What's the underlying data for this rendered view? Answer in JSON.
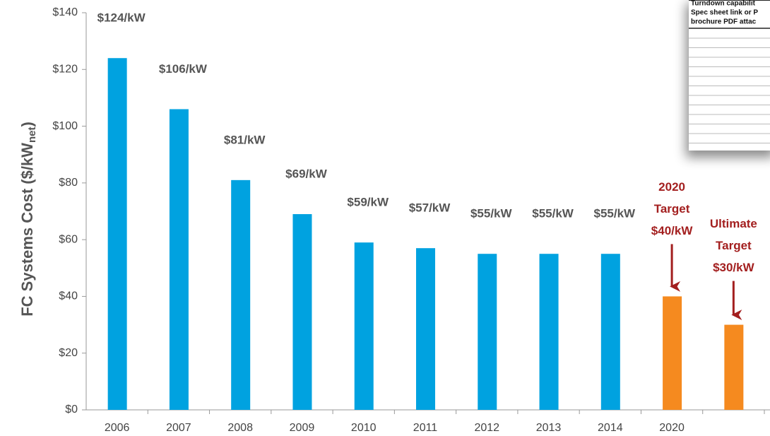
{
  "chart_data": {
    "type": "bar",
    "y_label": {
      "main": "FC Systems Cost ($/kW",
      "sub": "net",
      "end": ")"
    },
    "categories": [
      "2006",
      "2007",
      "2008",
      "2009",
      "2010",
      "2011",
      "2012",
      "2013",
      "2014",
      "2020",
      null
    ],
    "values": [
      124,
      106,
      81,
      69,
      59,
      57,
      55,
      55,
      55,
      40,
      30
    ],
    "value_labels": [
      "$124/kW",
      "$106/kW",
      "$81/kW",
      "$69/kW",
      "$59/kW",
      "$57/kW",
      "$55/kW",
      "$55/kW",
      "$55/kW",
      null,
      null
    ],
    "colors": [
      "#00a2e0",
      "#00a2e0",
      "#00a2e0",
      "#00a2e0",
      "#00a2e0",
      "#00a2e0",
      "#00a2e0",
      "#00a2e0",
      "#00a2e0",
      "#f58a1f",
      "#f58a1f"
    ],
    "annotations": [
      {
        "lines": [
          "2020",
          "Target",
          "$40/kW"
        ],
        "color": "#a31f1f"
      },
      {
        "lines": [
          "Ultimate",
          "Target",
          "$30/kW"
        ],
        "color": "#a31f1f"
      }
    ],
    "ylim": [
      0,
      140
    ],
    "yticks": [
      {
        "value": 0,
        "label": "$0"
      },
      {
        "value": 20,
        "label": "$20"
      },
      {
        "value": 40,
        "label": "$40"
      },
      {
        "value": 60,
        "label": "$60"
      },
      {
        "value": 80,
        "label": "$80"
      },
      {
        "value": 100,
        "label": "$100"
      },
      {
        "value": 120,
        "label": "$120"
      },
      {
        "value": 140,
        "label": "$140"
      }
    ],
    "grid": false
  },
  "inset": {
    "lines": [
      "Turndown capabilit",
      "Spec sheet link or P",
      "brochure PDF attac"
    ]
  }
}
